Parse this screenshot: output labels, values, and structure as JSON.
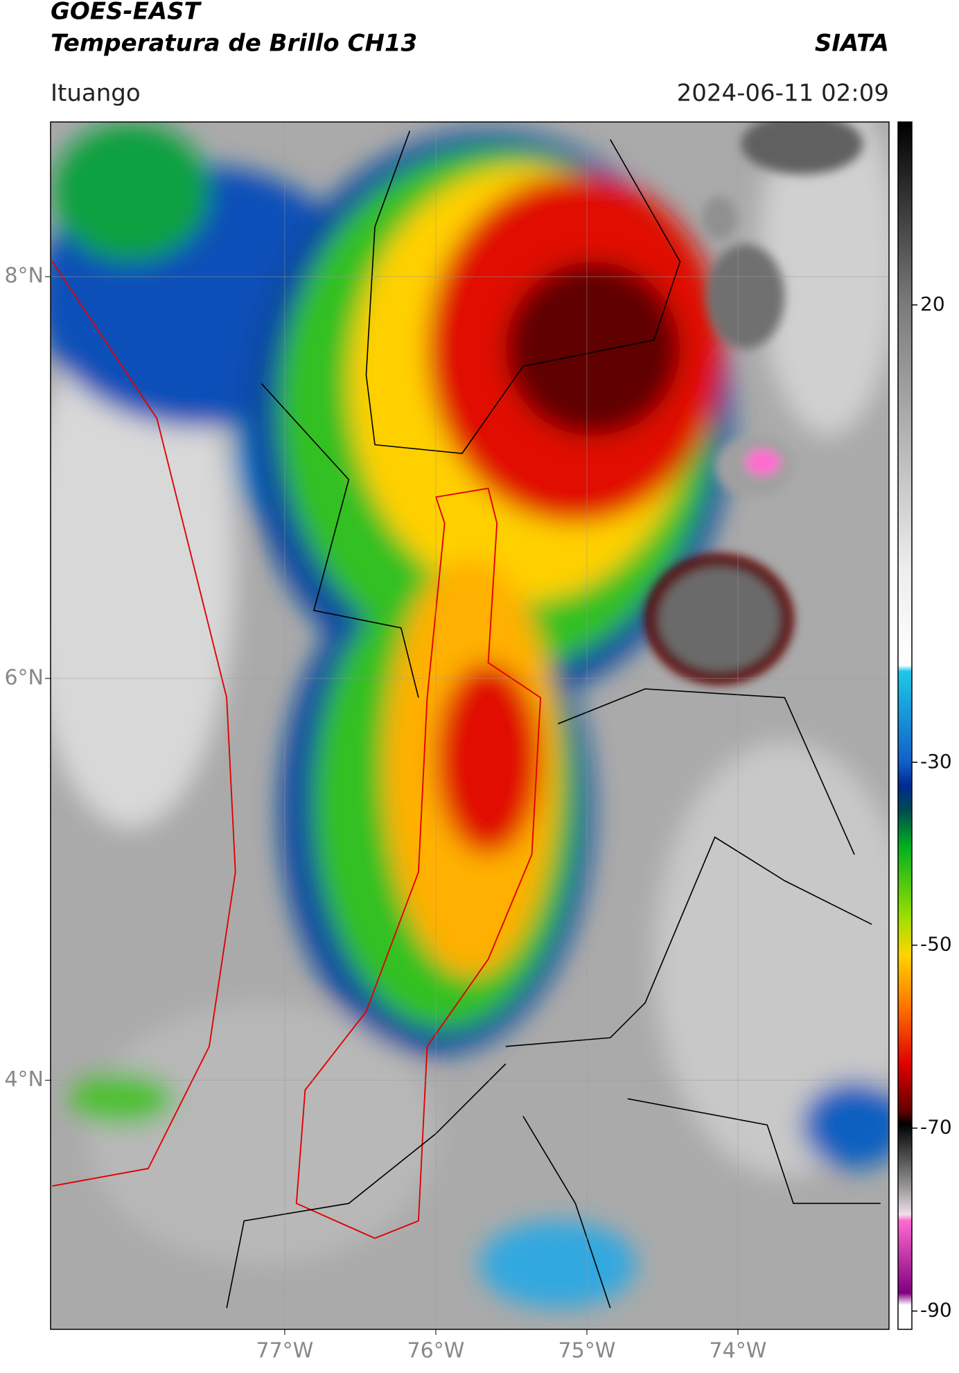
{
  "header": {
    "satellite": "GOES-EAST",
    "product": "Temperatura de Brillo CH13",
    "organization": "SIATA",
    "location": "Ituango",
    "timestamp": "2024-06-11 02:09"
  },
  "map": {
    "xlim": [
      -78.55,
      -73
    ],
    "ylim": [
      2.76,
      8.77
    ],
    "xticks": [
      {
        "value": -77,
        "label": "77°W"
      },
      {
        "value": -76,
        "label": "76°W"
      },
      {
        "value": -75,
        "label": "75°W"
      },
      {
        "value": -74,
        "label": "74°W"
      }
    ],
    "yticks": [
      {
        "value": 4,
        "label": "4°N"
      },
      {
        "value": 6,
        "label": "6°N"
      },
      {
        "value": 8,
        "label": "8°N"
      }
    ],
    "grid": true
  },
  "colorbar": {
    "lim": [
      -92,
      40
    ],
    "ticks": [
      20,
      -30,
      -50,
      -70,
      -90
    ]
  }
}
